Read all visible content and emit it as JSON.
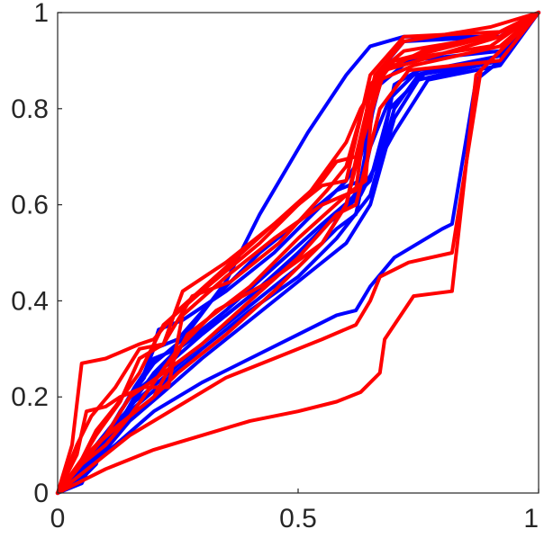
{
  "chart_data": {
    "type": "line",
    "title": "",
    "xlabel": "",
    "ylabel": "",
    "xlim": [
      0,
      1
    ],
    "ylim": [
      0,
      1
    ],
    "grid": false,
    "legend": "none",
    "xticks": [
      "0",
      "0.5",
      "1"
    ],
    "yticks": [
      "0",
      "0.2",
      "0.4",
      "0.6",
      "0.8",
      "1"
    ],
    "colors": {
      "blue": "#0000ff",
      "red": "#ff0000",
      "axis": "#262626"
    },
    "series": [
      {
        "color": "blue",
        "x": [
          0,
          0.04,
          0.08,
          0.1,
          0.15,
          0.2,
          0.26,
          0.35,
          0.42,
          0.52,
          0.6,
          0.65,
          0.72,
          0.92,
          1
        ],
        "y": [
          0,
          0.02,
          0.06,
          0.12,
          0.2,
          0.27,
          0.32,
          0.44,
          0.58,
          0.75,
          0.87,
          0.93,
          0.95,
          0.95,
          1
        ]
      },
      {
        "color": "blue",
        "x": [
          0,
          0.05,
          0.09,
          0.13,
          0.18,
          0.21,
          0.26,
          0.35,
          0.45,
          0.55,
          0.6,
          0.63,
          0.67,
          0.73,
          0.92,
          1
        ],
        "y": [
          0,
          0.03,
          0.1,
          0.17,
          0.24,
          0.34,
          0.36,
          0.42,
          0.5,
          0.6,
          0.65,
          0.7,
          0.85,
          0.9,
          0.92,
          1
        ]
      },
      {
        "color": "blue",
        "x": [
          0,
          0.05,
          0.08,
          0.12,
          0.16,
          0.2,
          0.25,
          0.35,
          0.45,
          0.55,
          0.62,
          0.65,
          0.69,
          0.77,
          0.92,
          1
        ],
        "y": [
          0,
          0.04,
          0.1,
          0.15,
          0.22,
          0.28,
          0.3,
          0.38,
          0.47,
          0.56,
          0.62,
          0.65,
          0.8,
          0.88,
          0.91,
          1
        ]
      },
      {
        "color": "blue",
        "x": [
          0,
          0.05,
          0.1,
          0.15,
          0.2,
          0.25,
          0.35,
          0.45,
          0.55,
          0.63,
          0.67,
          0.7,
          0.75,
          0.92,
          1
        ],
        "y": [
          0,
          0.05,
          0.11,
          0.18,
          0.25,
          0.3,
          0.37,
          0.45,
          0.55,
          0.62,
          0.7,
          0.85,
          0.88,
          0.9,
          1
        ]
      },
      {
        "color": "blue",
        "x": [
          0,
          0.06,
          0.1,
          0.16,
          0.22,
          0.3,
          0.4,
          0.5,
          0.58,
          0.62,
          0.65,
          0.69,
          0.74,
          0.92,
          1
        ],
        "y": [
          0,
          0.06,
          0.12,
          0.19,
          0.24,
          0.31,
          0.39,
          0.47,
          0.55,
          0.58,
          0.72,
          0.82,
          0.87,
          0.9,
          1
        ]
      },
      {
        "color": "blue",
        "x": [
          0,
          0.05,
          0.1,
          0.15,
          0.22,
          0.3,
          0.4,
          0.5,
          0.58,
          0.65,
          0.7,
          0.75,
          0.92,
          1
        ],
        "y": [
          0,
          0.04,
          0.1,
          0.17,
          0.23,
          0.3,
          0.38,
          0.45,
          0.53,
          0.62,
          0.8,
          0.87,
          0.9,
          1
        ]
      },
      {
        "color": "blue",
        "x": [
          0,
          0.05,
          0.1,
          0.15,
          0.22,
          0.3,
          0.4,
          0.5,
          0.6,
          0.65,
          0.7,
          0.75,
          0.92,
          1
        ],
        "y": [
          0,
          0.03,
          0.09,
          0.15,
          0.21,
          0.28,
          0.36,
          0.44,
          0.52,
          0.6,
          0.78,
          0.86,
          0.9,
          1
        ]
      },
      {
        "color": "blue",
        "x": [
          0,
          0.05,
          0.08,
          0.12,
          0.16,
          0.2,
          0.25,
          0.32,
          0.42,
          0.52,
          0.58,
          0.63,
          0.67,
          0.72,
          0.92,
          1
        ],
        "y": [
          0,
          0.02,
          0.08,
          0.13,
          0.2,
          0.3,
          0.32,
          0.4,
          0.5,
          0.58,
          0.63,
          0.65,
          0.88,
          0.94,
          0.95,
          1
        ]
      },
      {
        "color": "blue",
        "x": [
          0,
          0.05,
          0.1,
          0.15,
          0.22,
          0.3,
          0.4,
          0.5,
          0.6,
          0.65,
          0.7,
          0.77,
          0.92,
          1
        ],
        "y": [
          0,
          0.05,
          0.12,
          0.2,
          0.26,
          0.33,
          0.41,
          0.5,
          0.6,
          0.66,
          0.75,
          0.86,
          0.89,
          1
        ]
      },
      {
        "color": "blue",
        "x": [
          0,
          0.06,
          0.12,
          0.2,
          0.25,
          0.3,
          0.4,
          0.5,
          0.58,
          0.62,
          0.65,
          0.7,
          0.8,
          0.82,
          0.87,
          0.92,
          1
        ],
        "y": [
          0,
          0.05,
          0.1,
          0.17,
          0.2,
          0.23,
          0.28,
          0.33,
          0.37,
          0.38,
          0.43,
          0.49,
          0.55,
          0.56,
          0.86,
          0.9,
          1
        ]
      },
      {
        "color": "red",
        "x": [
          0,
          0.03,
          0.05,
          0.1,
          0.17,
          0.2,
          0.25,
          0.35,
          0.45,
          0.55,
          0.58,
          0.62,
          0.66,
          0.72,
          0.9,
          1
        ],
        "y": [
          0,
          0.1,
          0.27,
          0.28,
          0.31,
          0.32,
          0.38,
          0.47,
          0.56,
          0.65,
          0.69,
          0.7,
          0.87,
          0.92,
          0.95,
          1
        ]
      },
      {
        "color": "red",
        "x": [
          0,
          0.04,
          0.06,
          0.1,
          0.13,
          0.18,
          0.23,
          0.26,
          0.35,
          0.45,
          0.55,
          0.62,
          0.65,
          0.7,
          0.9,
          1
        ],
        "y": [
          0,
          0.08,
          0.17,
          0.18,
          0.2,
          0.22,
          0.22,
          0.37,
          0.45,
          0.53,
          0.6,
          0.63,
          0.85,
          0.9,
          0.95,
          1
        ]
      },
      {
        "color": "red",
        "x": [
          0,
          0.04,
          0.07,
          0.12,
          0.17,
          0.22,
          0.26,
          0.35,
          0.45,
          0.55,
          0.6,
          0.65,
          0.72,
          0.92,
          1
        ],
        "y": [
          0,
          0.1,
          0.16,
          0.22,
          0.3,
          0.31,
          0.42,
          0.48,
          0.56,
          0.64,
          0.65,
          0.87,
          0.95,
          0.96,
          1
        ]
      },
      {
        "color": "red",
        "x": [
          0,
          0.05,
          0.1,
          0.15,
          0.22,
          0.3,
          0.4,
          0.5,
          0.58,
          0.62,
          0.67,
          0.73,
          0.92,
          1
        ],
        "y": [
          0,
          0.07,
          0.12,
          0.2,
          0.25,
          0.31,
          0.4,
          0.49,
          0.58,
          0.6,
          0.8,
          0.88,
          0.9,
          1
        ]
      },
      {
        "color": "red",
        "x": [
          0,
          0.05,
          0.08,
          0.13,
          0.17,
          0.22,
          0.28,
          0.36,
          0.46,
          0.56,
          0.6,
          0.64,
          0.7,
          0.9,
          1
        ],
        "y": [
          0,
          0.07,
          0.12,
          0.19,
          0.28,
          0.31,
          0.41,
          0.44,
          0.52,
          0.63,
          0.68,
          0.82,
          0.9,
          0.93,
          1
        ]
      },
      {
        "color": "red",
        "x": [
          0,
          0.05,
          0.1,
          0.15,
          0.2,
          0.25,
          0.35,
          0.45,
          0.55,
          0.6,
          0.63,
          0.68,
          0.75,
          0.92,
          1
        ],
        "y": [
          0,
          0.06,
          0.1,
          0.16,
          0.2,
          0.25,
          0.33,
          0.42,
          0.52,
          0.6,
          0.72,
          0.88,
          0.9,
          0.95,
          1
        ]
      },
      {
        "color": "red",
        "x": [
          0,
          0.04,
          0.08,
          0.12,
          0.17,
          0.22,
          0.3,
          0.42,
          0.52,
          0.6,
          0.63,
          0.68,
          0.76,
          0.92,
          1
        ],
        "y": [
          0,
          0.05,
          0.13,
          0.18,
          0.25,
          0.35,
          0.42,
          0.52,
          0.62,
          0.73,
          0.8,
          0.88,
          0.92,
          0.96,
          1
        ]
      },
      {
        "color": "red",
        "x": [
          0,
          0.04,
          0.08,
          0.15,
          0.25,
          0.33,
          0.44,
          0.55,
          0.6,
          0.63,
          0.67,
          0.74,
          0.92,
          1
        ],
        "y": [
          0,
          0.05,
          0.1,
          0.16,
          0.3,
          0.38,
          0.44,
          0.52,
          0.6,
          0.74,
          0.86,
          0.89,
          0.93,
          1
        ]
      },
      {
        "color": "red",
        "x": [
          0,
          0.05,
          0.1,
          0.2,
          0.27,
          0.4,
          0.5,
          0.6,
          0.64,
          0.66,
          0.72,
          0.9,
          1
        ],
        "y": [
          0,
          0.06,
          0.12,
          0.2,
          0.33,
          0.43,
          0.53,
          0.62,
          0.65,
          0.87,
          0.94,
          0.97,
          1
        ]
      },
      {
        "color": "red",
        "x": [
          0,
          0.05,
          0.15,
          0.25,
          0.35,
          0.45,
          0.55,
          0.62,
          0.65,
          0.67,
          0.73,
          0.82,
          0.88,
          0.92,
          1
        ],
        "y": [
          0,
          0.04,
          0.12,
          0.18,
          0.24,
          0.28,
          0.32,
          0.35,
          0.4,
          0.45,
          0.48,
          0.5,
          0.88,
          0.92,
          1
        ]
      },
      {
        "color": "red",
        "x": [
          0,
          0.1,
          0.2,
          0.3,
          0.4,
          0.5,
          0.58,
          0.63,
          0.67,
          0.68,
          0.74,
          0.82,
          0.87,
          0.92,
          1
        ],
        "y": [
          0,
          0.05,
          0.09,
          0.12,
          0.15,
          0.17,
          0.19,
          0.21,
          0.25,
          0.32,
          0.41,
          0.42,
          0.87,
          0.92,
          1
        ]
      }
    ]
  }
}
